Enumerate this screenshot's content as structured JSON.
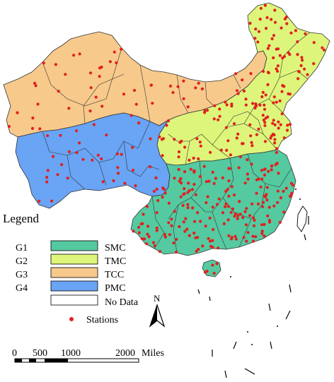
{
  "legend": {
    "title": "Legend",
    "items": [
      {
        "code": "G1",
        "label": "SMC",
        "color": "#55c9a0"
      },
      {
        "code": "G2",
        "label": "TMC",
        "color": "#ddf57a"
      },
      {
        "code": "G3",
        "label": "TCC",
        "color": "#f7c98b"
      },
      {
        "code": "G4",
        "label": "PMC",
        "color": "#69a4f5"
      }
    ],
    "no_data_label": "No Data",
    "no_data_color": "#ffffff",
    "stations_label": "Stations",
    "station_color": "#e11f1f"
  },
  "north_arrow": {
    "label": "N"
  },
  "scale_bar": {
    "ticks": [
      "0",
      "500",
      "1000",
      "2000"
    ],
    "unit": "Miles"
  },
  "regions": [
    {
      "name": "TCC",
      "color": "#f7c98b"
    },
    {
      "name": "PMC",
      "color": "#69a4f5"
    },
    {
      "name": "TMC",
      "color": "#ddf57a"
    },
    {
      "name": "SMC",
      "color": "#55c9a0"
    }
  ]
}
